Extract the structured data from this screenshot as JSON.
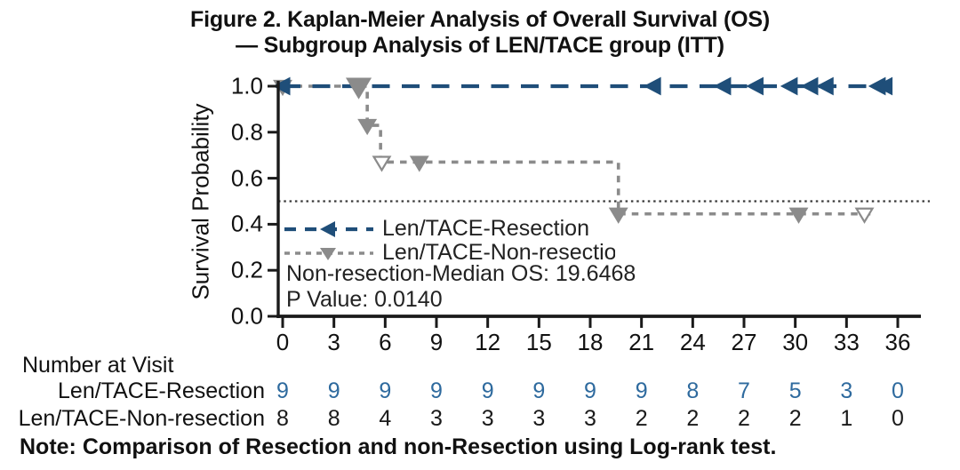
{
  "title": {
    "line1": "Figure 2. Kaplan-Meier Analysis of Overall Survival (OS)",
    "line2": "— Subgroup Analysis of LEN/TACE group (ITT)"
  },
  "chart_data": {
    "type": "line",
    "subtype": "kaplan-meier-step",
    "title": "Figure 2. Kaplan-Meier Analysis of Overall Survival (OS) — Subgroup Analysis of LEN/TACE group (ITT)",
    "xlabel": "",
    "ylabel": "Survival Probability",
    "xlim": [
      0,
      36
    ],
    "ylim": [
      0.0,
      1.0
    ],
    "x_ticks": [
      0,
      3,
      6,
      9,
      12,
      15,
      18,
      21,
      24,
      27,
      30,
      33,
      36
    ],
    "y_tick_labels": [
      "0.0",
      "0.2",
      "0.4",
      "0.6",
      "0.8",
      "1.0"
    ],
    "y_tick_values": [
      0.0,
      0.2,
      0.4,
      0.6,
      0.8,
      1.0
    ],
    "grid": false,
    "reference_line": {
      "y": 0.5,
      "style": "dotted",
      "color": "#3a3a3a"
    },
    "legend_position": "inside-left-middle",
    "series": [
      {
        "name": "Len/TACE-Resection",
        "color": "#1f4e79",
        "line_style": "long-dash",
        "marker": "left-triangle",
        "points": [
          [
            0,
            1.0
          ],
          [
            35.6,
            1.0
          ]
        ],
        "censor_marks": [
          {
            "x": 0,
            "y": 1.0
          },
          {
            "x": 21.7,
            "y": 1.0
          },
          {
            "x": 25.8,
            "y": 1.0
          },
          {
            "x": 27.7,
            "y": 1.0
          },
          {
            "x": 29.7,
            "y": 1.0
          },
          {
            "x": 30.9,
            "y": 1.0
          },
          {
            "x": 31.8,
            "y": 1.0
          },
          {
            "x": 34.85,
            "y": 1.0
          },
          {
            "x": 35.25,
            "y": 1.0
          }
        ]
      },
      {
        "name": "Len/TACE-Non-resection",
        "display_label": "Len/TACE-Non-resectior",
        "color": "#8b8b8b",
        "line_style": "short-dash",
        "marker": "down-triangle",
        "points": [
          [
            0,
            1.0
          ],
          [
            4.95,
            1.0
          ],
          [
            4.95,
            0.83
          ],
          [
            5.73,
            0.83
          ],
          [
            5.73,
            0.67
          ],
          [
            19.65,
            0.67
          ],
          [
            19.65,
            0.445
          ],
          [
            34.5,
            0.445
          ]
        ],
        "markers": [
          {
            "x": 0,
            "y": 1.0,
            "style": "filled",
            "size": 1
          },
          {
            "x": 4.45,
            "y": 1.0,
            "style": "filled",
            "size": 1.4
          },
          {
            "x": 4.95,
            "y": 0.83,
            "style": "filled",
            "size": 1
          },
          {
            "x": 5.8,
            "y": 0.67,
            "style": "open",
            "size": 1
          },
          {
            "x": 8.0,
            "y": 0.67,
            "style": "filled",
            "size": 1
          },
          {
            "x": 19.65,
            "y": 0.445,
            "style": "filled",
            "size": 1
          },
          {
            "x": 30.2,
            "y": 0.445,
            "style": "filled",
            "size": 1
          },
          {
            "x": 34.05,
            "y": 0.445,
            "style": "open",
            "size": 1
          }
        ]
      }
    ],
    "annotations": [
      {
        "text": "Non-resection-Median OS: 19.6468"
      },
      {
        "text": "P Value: 0.0140"
      }
    ]
  },
  "at_risk": {
    "header": "Number at Visit",
    "columns": [
      0,
      3,
      6,
      9,
      12,
      15,
      18,
      21,
      24,
      27,
      30,
      33,
      36
    ],
    "rows": [
      {
        "label": "Len/TACE-Resection",
        "color": "#2e6a9e",
        "values": [
          9,
          9,
          9,
          9,
          9,
          9,
          9,
          9,
          8,
          7,
          5,
          3,
          0
        ]
      },
      {
        "label": "Len/TACE-Non-resection",
        "color": "#1a1a1a",
        "values": [
          8,
          8,
          4,
          3,
          3,
          3,
          3,
          2,
          2,
          2,
          2,
          1,
          0
        ]
      }
    ]
  },
  "note": "Note: Comparison of Resection and non-Resection using Log-rank test.",
  "colors": {
    "resection_blue": "#1f4e79",
    "non_resection_gray": "#8b8b8b",
    "at_risk_blue": "#2e6a9e",
    "axis_black": "#1a1a1a"
  }
}
